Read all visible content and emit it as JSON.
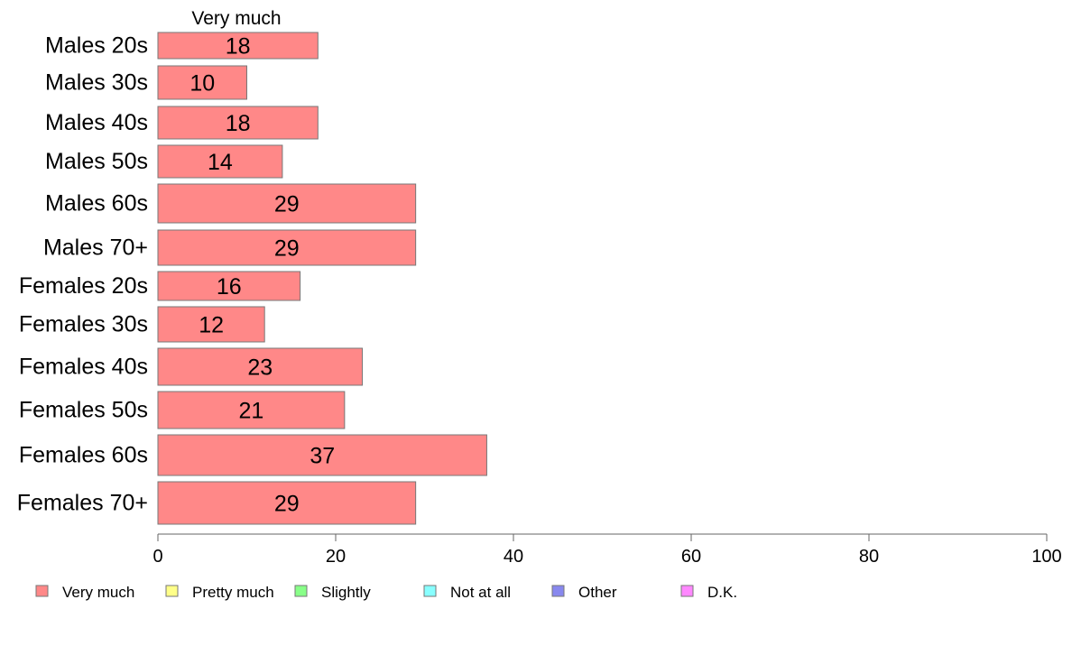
{
  "chart_data": {
    "type": "bar",
    "orientation": "horizontal",
    "stacked": true,
    "categories": [
      "Males 20s",
      "Males 30s",
      "Males 40s",
      "Males 50s",
      "Males 60s",
      "Males 70+",
      "Females 20s",
      "Females 30s",
      "Females 40s",
      "Females 50s",
      "Females 60s",
      "Females 70+"
    ],
    "series": [
      {
        "name": "Very much",
        "color": "#ff8888",
        "values": [
          18,
          10,
          18,
          14,
          29,
          29,
          16,
          12,
          23,
          21,
          37,
          29
        ],
        "labels": [
          "18",
          "10",
          "18",
          "14",
          "29",
          "29",
          "16",
          "12",
          "23",
          "21",
          "37",
          "29"
        ]
      }
    ],
    "column_header": "Very much",
    "xlim": [
      0,
      100
    ],
    "xticks": [
      0,
      20,
      40,
      60,
      80,
      100
    ],
    "xtick_labels": [
      "0",
      "20",
      "40",
      "60",
      "80",
      "100"
    ],
    "legend": {
      "placement": "bottom",
      "items": [
        {
          "label": "Very much",
          "color": "#ff8888"
        },
        {
          "label": "Pretty much",
          "color": "#ffff88"
        },
        {
          "label": "Slightly",
          "color": "#88ff88"
        },
        {
          "label": "Not at all",
          "color": "#88ffff"
        },
        {
          "label": "Other",
          "color": "#8888ee"
        },
        {
          "label": "D.K.",
          "color": "#ff88ff"
        }
      ]
    },
    "grid": false,
    "bar_border_color": "#777777",
    "axis_color": "#666666"
  }
}
